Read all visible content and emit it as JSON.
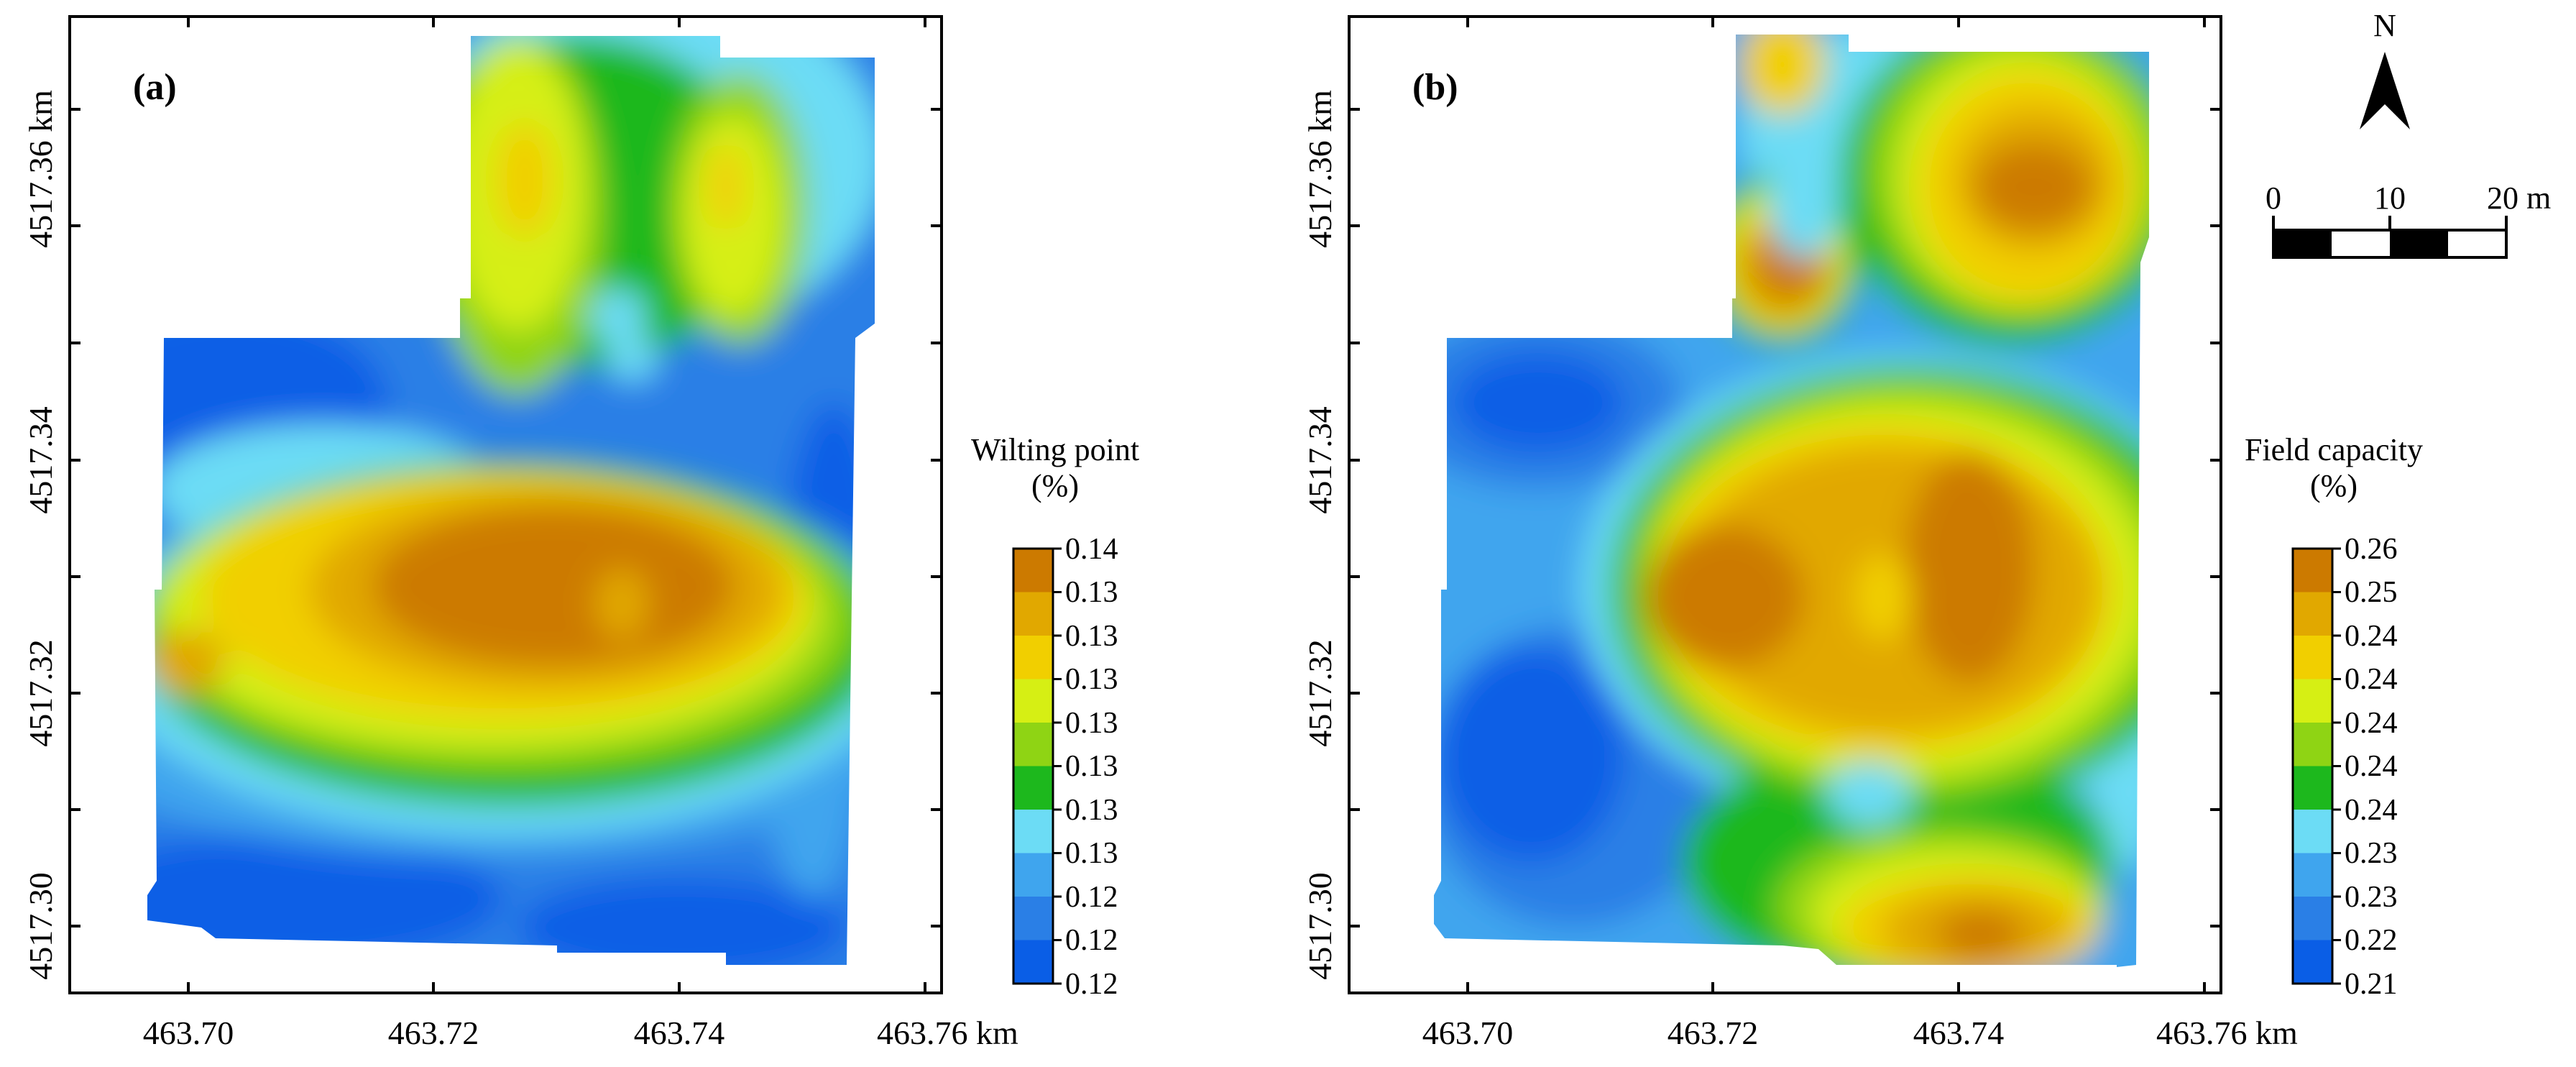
{
  "colors": {
    "ramp": [
      "#0a5ee6",
      "#2a7fe6",
      "#3fa5ee",
      "#6cdcf5",
      "#1db81d",
      "#8fd414",
      "#d6ef14",
      "#f1cf00",
      "#e1a800",
      "#cc7a00"
    ],
    "frame": "#000000",
    "background": "#ffffff"
  },
  "axes": {
    "x_ticks": [
      "463.70",
      "463.72",
      "463.74",
      "463.76 km"
    ],
    "y_ticks": [
      "4517.30",
      "4517.32",
      "4517.34",
      "4517.36 km"
    ]
  },
  "panels": [
    {
      "label": "(a)",
      "legend_title_line1": "Wilting point",
      "legend_title_line2": "(%)",
      "legend_values": [
        "0.14",
        "0.13",
        "0.13",
        "0.13",
        "0.13",
        "0.13",
        "0.13",
        "0.13",
        "0.12",
        "0.12",
        "0.12"
      ]
    },
    {
      "label": "(b)",
      "legend_title_line1": "Field capacity",
      "legend_title_line2": "(%)",
      "legend_values": [
        "0.26",
        "0.25",
        "0.24",
        "0.24",
        "0.24",
        "0.24",
        "0.24",
        "0.23",
        "0.23",
        "0.22",
        "0.21"
      ]
    }
  ],
  "north_arrow": {
    "label": "N"
  },
  "scale_bar": {
    "labels": [
      "0",
      "10",
      "20 m"
    ]
  },
  "chart_data": [
    {
      "type": "heatmap",
      "title": "Wilting point (%)",
      "xlabel": "km",
      "ylabel": "km",
      "x_ticks": [
        463.7,
        463.72,
        463.74,
        463.76
      ],
      "y_ticks": [
        4517.3,
        4517.32,
        4517.34,
        4517.36
      ],
      "color_scale": [
        0.14,
        0.13,
        0.13,
        0.13,
        0.13,
        0.13,
        0.13,
        0.13,
        0.12,
        0.12,
        0.12
      ]
    },
    {
      "type": "heatmap",
      "title": "Field capacity (%)",
      "xlabel": "km",
      "ylabel": "km",
      "x_ticks": [
        463.7,
        463.72,
        463.74,
        463.76
      ],
      "y_ticks": [
        4517.3,
        4517.32,
        4517.34,
        4517.36
      ],
      "color_scale": [
        0.26,
        0.25,
        0.24,
        0.24,
        0.24,
        0.24,
        0.24,
        0.23,
        0.23,
        0.22,
        0.21
      ]
    }
  ]
}
